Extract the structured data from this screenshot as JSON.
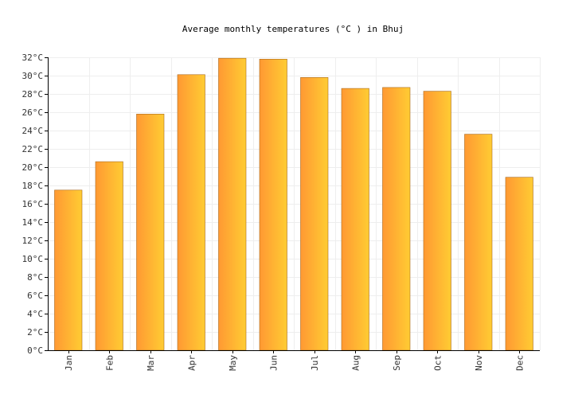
{
  "chart_data": {
    "type": "bar",
    "title": "Average monthly temperatures (°C ) in Bhuj",
    "xlabel": "",
    "ylabel": "",
    "categories": [
      "Jan",
      "Feb",
      "Mar",
      "Apr",
      "May",
      "Jun",
      "Jul",
      "Aug",
      "Sep",
      "Oct",
      "Nov",
      "Dec"
    ],
    "values": [
      17.5,
      20.6,
      25.8,
      30.1,
      31.9,
      31.8,
      29.8,
      28.6,
      28.7,
      28.3,
      23.6,
      18.9
    ],
    "ylim": [
      0,
      32
    ],
    "yticks": [
      0,
      2,
      4,
      6,
      8,
      10,
      12,
      14,
      16,
      18,
      20,
      22,
      24,
      26,
      28,
      30,
      32
    ],
    "ytick_suffix": "°C",
    "grid": true,
    "colors": {
      "bar_start": "#ff9933",
      "bar_end": "#ffcc33",
      "bar_edge": "#a86a1e"
    }
  }
}
